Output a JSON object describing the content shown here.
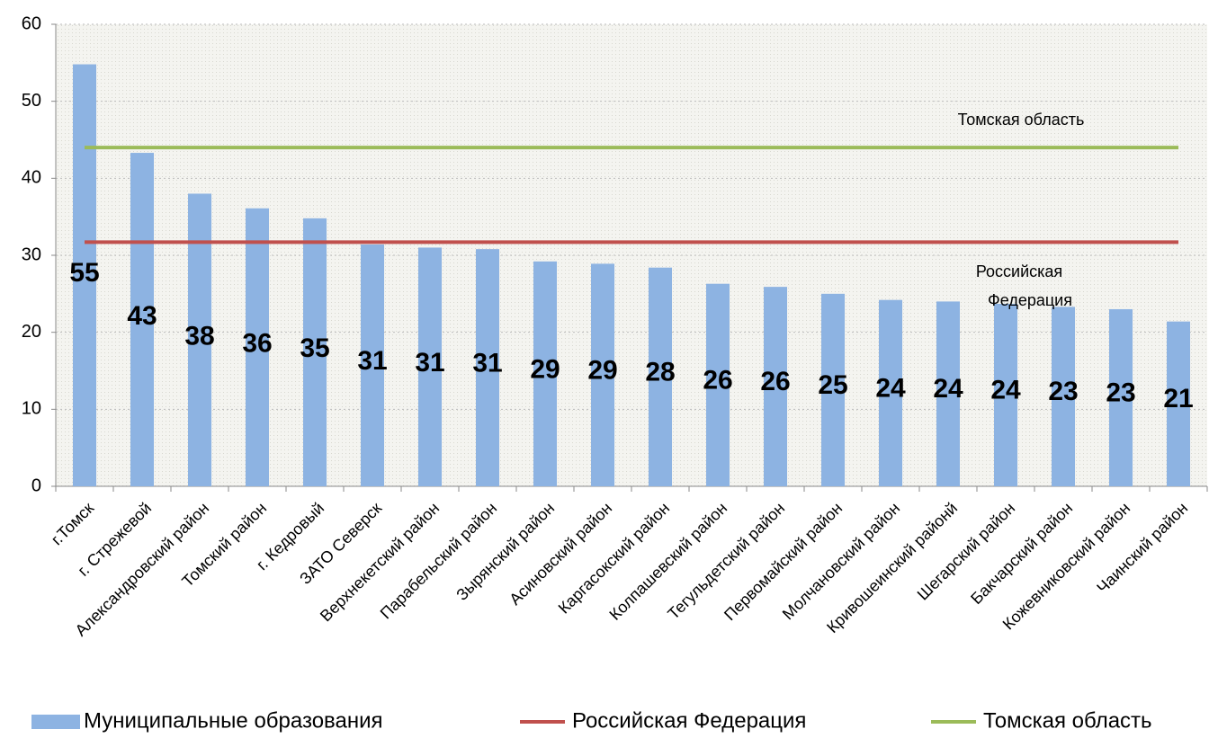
{
  "chart_data": {
    "type": "bar",
    "categories": [
      "г.Томск",
      "г. Стрежевой",
      "Александровский район",
      "Томский район",
      "г. Кедровый",
      "ЗАТО Северск",
      "Верхнекетский район",
      "Парабельский район",
      "Зырянский район",
      "Асиновский район",
      "Каргасокский район",
      "Колпашевский район",
      "Тегульдетский район",
      "Первомайский район",
      "Молчановский район",
      "Кривошеинский районй",
      "Шегарский район",
      "Бакчарский район",
      "Кожевниковский район",
      "Чаинский район"
    ],
    "series": [
      {
        "name": "Муниципальные образования",
        "type": "bar",
        "color": "#8db3e2",
        "values": [
          54.8,
          43.3,
          38.0,
          36.1,
          34.8,
          31.4,
          31.0,
          30.8,
          29.2,
          28.9,
          28.4,
          26.3,
          25.9,
          25.0,
          24.2,
          24.0,
          23.7,
          23.3,
          23.0,
          21.4
        ],
        "value_labels": [
          "55",
          "43",
          "38",
          "36",
          "35",
          "31",
          "31",
          "31",
          "29",
          "29",
          "28",
          "26",
          "26",
          "25",
          "24",
          "24",
          "24",
          "23",
          "23",
          "21"
        ]
      },
      {
        "name": "Российская Федерация",
        "type": "line",
        "color": "#c0504d",
        "values": [
          31.7,
          31.7,
          31.7,
          31.7,
          31.7,
          31.7,
          31.7,
          31.7,
          31.7,
          31.7,
          31.7,
          31.7,
          31.7,
          31.7,
          31.7,
          31.7,
          31.7,
          31.7,
          31.7,
          31.7
        ]
      },
      {
        "name": "Томская область",
        "type": "line",
        "color": "#9bbb59",
        "values": [
          44.0,
          44.0,
          44.0,
          44.0,
          44.0,
          44.0,
          44.0,
          44.0,
          44.0,
          44.0,
          44.0,
          44.0,
          44.0,
          44.0,
          44.0,
          44.0,
          44.0,
          44.0,
          44.0,
          44.0
        ]
      }
    ],
    "annotations": [
      {
        "lines": [
          "Томская область"
        ]
      },
      {
        "lines": [
          "Российская",
          "Федерация"
        ]
      }
    ],
    "ylim": [
      0,
      60
    ],
    "yticks": [
      0,
      10,
      20,
      30,
      40,
      50,
      60
    ],
    "grid": true,
    "legend": "bottom"
  }
}
